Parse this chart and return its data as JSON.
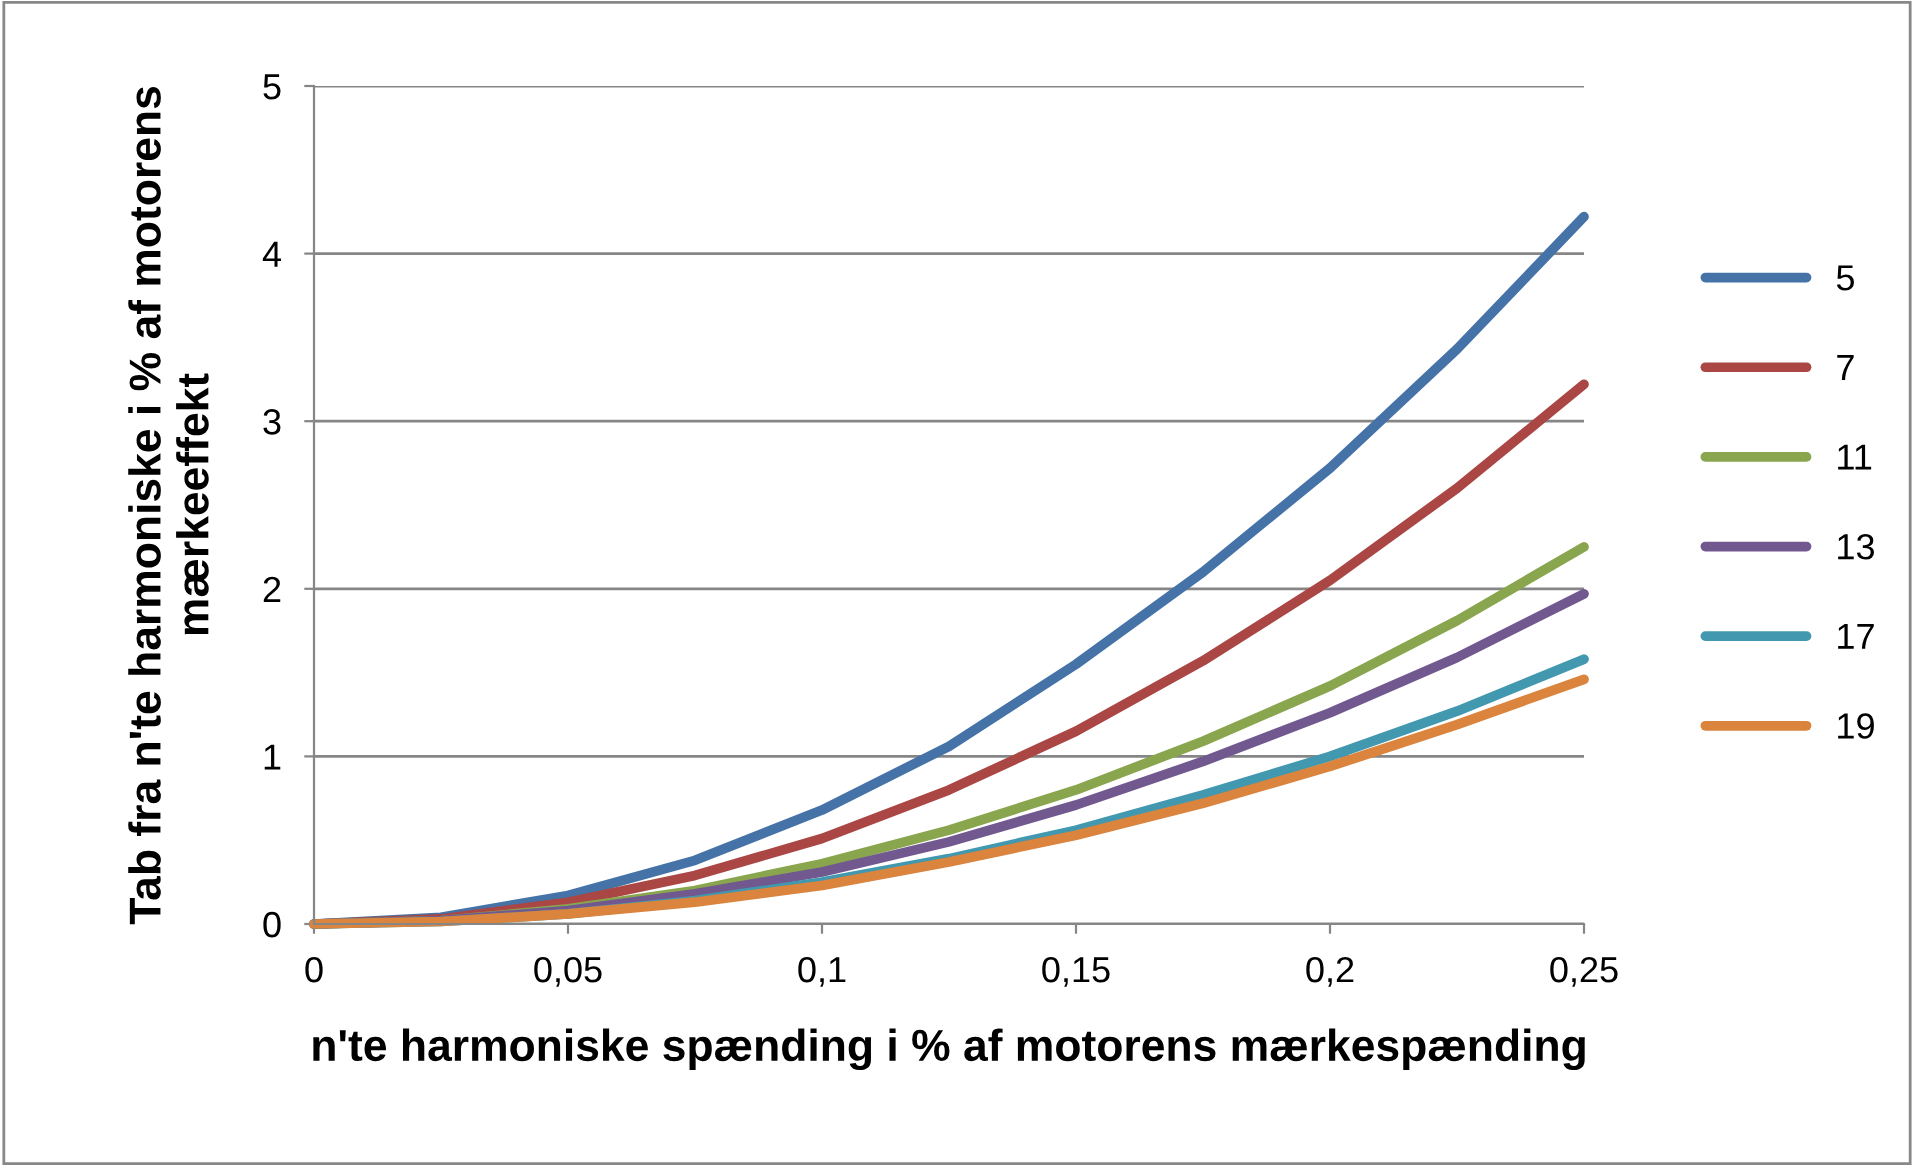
{
  "chart_data": {
    "type": "line",
    "xlabel": "n'te harmoniske spænding i % af motorens mærkespænding",
    "ylabel": "Tab fra n'te harmoniske i % af motorens mærkeeffekt",
    "x": [
      0,
      0.025,
      0.05,
      0.075,
      0.1,
      0.125,
      0.15,
      0.175,
      0.2,
      0.225,
      0.25
    ],
    "series": [
      {
        "name": "5",
        "color": "#4572a7",
        "values": [
          0,
          0.04,
          0.17,
          0.38,
          0.68,
          1.06,
          1.55,
          2.1,
          2.72,
          3.43,
          4.22
        ]
      },
      {
        "name": "7",
        "color": "#aa4643",
        "values": [
          0,
          0.03,
          0.13,
          0.29,
          0.51,
          0.8,
          1.15,
          1.57,
          2.05,
          2.6,
          3.22
        ]
      },
      {
        "name": "11",
        "color": "#89a54e",
        "values": [
          0,
          0.02,
          0.09,
          0.2,
          0.36,
          0.56,
          0.8,
          1.09,
          1.42,
          1.81,
          2.25
        ]
      },
      {
        "name": "13",
        "color": "#71588f",
        "values": [
          0,
          0.02,
          0.08,
          0.18,
          0.31,
          0.49,
          0.71,
          0.97,
          1.26,
          1.59,
          1.97
        ]
      },
      {
        "name": "17",
        "color": "#4198af",
        "values": [
          0,
          0.015,
          0.06,
          0.14,
          0.25,
          0.39,
          0.56,
          0.77,
          1.0,
          1.27,
          1.58
        ]
      },
      {
        "name": "19",
        "color": "#db843d",
        "values": [
          0,
          0.015,
          0.06,
          0.13,
          0.23,
          0.37,
          0.53,
          0.72,
          0.94,
          1.19,
          1.46
        ]
      }
    ],
    "xlim": [
      0,
      0.25
    ],
    "xticks": [
      0,
      {
        "value": 0.05,
        "label": "0,05"
      },
      {
        "value": 0.1,
        "label": "0,1"
      },
      {
        "value": 0.15,
        "label": "0,15"
      },
      {
        "value": 0.2,
        "label": "0,2"
      },
      {
        "value": 0.25,
        "label": "0,25"
      }
    ],
    "ylim": [
      0,
      5
    ],
    "yticks": [
      0,
      1,
      2,
      3,
      4,
      5
    ],
    "grid": "y",
    "legend": "right",
    "marker": "none",
    "line_style": "solid"
  }
}
